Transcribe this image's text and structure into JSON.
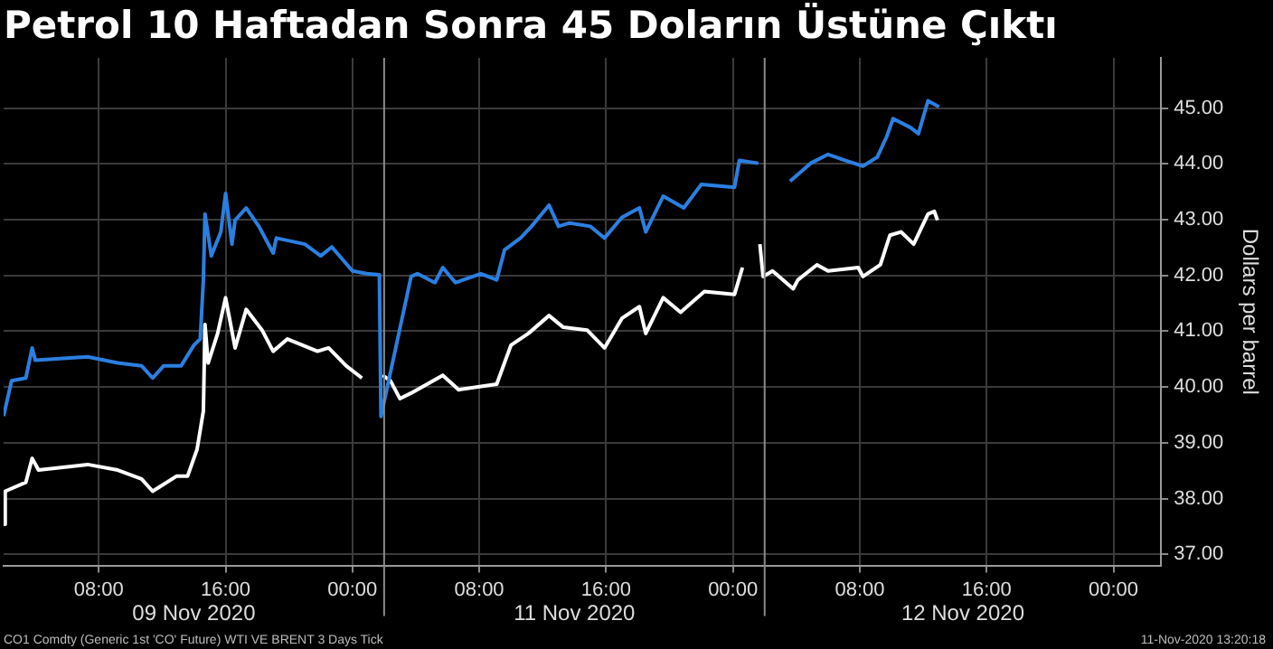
{
  "chart_data": {
    "type": "line",
    "title": "Petrol 10 Haftadan Sonra 45 Doların Üstüne Çıktı",
    "ylabel": "Dollars per barrel",
    "annotations": [
      "09 Nov 2020",
      "11 Nov 2020",
      "12 Nov 2020",
      "CO1 Comdty (Generic 1st 'CO' Future) WTI VE BRENT 3 Days  Tick",
      "11-Nov-2020 13:20:18"
    ],
    "xlim": [
      "2020-11-09T02:00",
      "2020-11-12T03:00"
    ],
    "xticks": [
      {
        "value": "2020-11-09T08:00",
        "label": "08:00"
      },
      {
        "value": "2020-11-09T16:00",
        "label": "16:00"
      },
      {
        "value": "2020-11-10T00:00",
        "label": "00:00"
      },
      {
        "value": "2020-11-10T08:00",
        "label": "08:00"
      },
      {
        "value": "2020-11-10T16:00",
        "label": "16:00"
      },
      {
        "value": "2020-11-11T00:00",
        "label": "00:00"
      },
      {
        "value": "2020-11-11T08:00",
        "label": "08:00"
      },
      {
        "value": "2020-11-11T16:00",
        "label": "16:00"
      },
      {
        "value": "2020-11-12T00:00",
        "label": "00:00"
      }
    ],
    "ylim": [
      36.8,
      45.9
    ],
    "yticks": [
      {
        "value": 37,
        "label": "37.00"
      },
      {
        "value": 38,
        "label": "38.00"
      },
      {
        "value": 39,
        "label": "39.00"
      },
      {
        "value": 40,
        "label": "40.00"
      },
      {
        "value": 41,
        "label": "41.00"
      },
      {
        "value": 42,
        "label": "42.00"
      },
      {
        "value": 43,
        "label": "43.00"
      },
      {
        "value": 44,
        "label": "44.00"
      },
      {
        "value": 45,
        "label": "45.00"
      }
    ],
    "grid": true,
    "legend": false,
    "ref_lines": [
      {
        "axis": "x",
        "value": "2020-11-10T02:00",
        "color": "#8a8a8a"
      },
      {
        "axis": "x",
        "value": "2020-11-11T02:00",
        "color": "#8a8a8a"
      }
    ],
    "series": [
      {
        "color": "#2b7fe0",
        "x": [
          "2020-11-09T02:00",
          "2020-11-09T02:30",
          "2020-11-09T03:24",
          "2020-11-09T03:48",
          "2020-11-09T04:00",
          "2020-11-09T07:18",
          "2020-11-09T09:12",
          "2020-11-09T10:42",
          "2020-11-09T11:24",
          "2020-11-09T12:06",
          "2020-11-09T13:12",
          "2020-11-09T14:00",
          "2020-11-09T14:24",
          "2020-11-09T14:36",
          "2020-11-09T14:42",
          "2020-11-09T15:06",
          "2020-11-09T15:42",
          "2020-11-09T16:00",
          "2020-11-09T16:24",
          "2020-11-09T16:36",
          "2020-11-09T17:18",
          "2020-11-09T18:06",
          "2020-11-09T19:00",
          "2020-11-09T19:12",
          "2020-11-09T21:00",
          "2020-11-09T22:00",
          "2020-11-09T22:42",
          "2020-11-10T00:00",
          "2020-11-10T00:54",
          "2020-11-10T01:42",
          "2020-11-10T01:48",
          "2020-11-10T03:42",
          "2020-11-10T04:06",
          "2020-11-10T05:12",
          "2020-11-10T05:42",
          "2020-11-10T06:30",
          "2020-11-10T08:06",
          "2020-11-10T09:06",
          "2020-11-10T09:36",
          "2020-11-10T10:36",
          "2020-11-10T11:18",
          "2020-11-10T12:24",
          "2020-11-10T13:00",
          "2020-11-10T13:42",
          "2020-11-10T15:00",
          "2020-11-10T15:54",
          "2020-11-10T17:00",
          "2020-11-10T18:06",
          "2020-11-10T18:30",
          "2020-11-10T19:36",
          "2020-11-10T20:54",
          "2020-11-10T22:00",
          "2020-11-11T00:06",
          "2020-11-11T00:24",
          "2020-11-11T01:36",
          "2020-11-11T02:36",
          "2020-11-11T03:36",
          "2020-11-11T04:54",
          "2020-11-11T06:00",
          "2020-11-11T07:06",
          "2020-11-11T08:12",
          "2020-11-11T09:06",
          "2020-11-11T09:42",
          "2020-11-11T10:06",
          "2020-11-11T11:12",
          "2020-11-11T11:42",
          "2020-11-11T12:18",
          "2020-11-11T13:00"
        ],
        "values": [
          39.48,
          40.11,
          40.16,
          40.7,
          40.48,
          40.54,
          40.43,
          40.38,
          40.16,
          40.38,
          40.38,
          40.75,
          40.86,
          41.92,
          43.1,
          42.35,
          42.78,
          43.47,
          42.56,
          42.99,
          43.21,
          42.88,
          42.4,
          42.67,
          42.56,
          42.35,
          42.51,
          42.08,
          42.03,
          42.01,
          39.47,
          41.98,
          42.03,
          41.87,
          42.14,
          41.87,
          42.03,
          41.92,
          42.46,
          42.67,
          42.88,
          43.26,
          42.88,
          42.94,
          42.88,
          42.67,
          43.04,
          43.21,
          42.78,
          43.42,
          43.21,
          43.63,
          43.58,
          44.06,
          44.01,
          null,
          43.69,
          44.01,
          44.17,
          44.06,
          43.96,
          44.12,
          44.49,
          44.81,
          44.65,
          44.54,
          45.13,
          45.02
        ]
      },
      {
        "color": "#ffffff",
        "x": [
          "2020-11-09T02:00",
          "2020-11-09T02:06",
          "2020-11-09T03:24",
          "2020-11-09T03:48",
          "2020-11-09T04:12",
          "2020-11-09T07:18",
          "2020-11-09T09:12",
          "2020-11-09T10:42",
          "2020-11-09T11:24",
          "2020-11-09T12:54",
          "2020-11-09T13:36",
          "2020-11-09T14:12",
          "2020-11-09T14:36",
          "2020-11-09T14:42",
          "2020-11-09T14:54",
          "2020-11-09T15:30",
          "2020-11-09T16:00",
          "2020-11-09T16:36",
          "2020-11-09T17:18",
          "2020-11-09T18:18",
          "2020-11-09T19:00",
          "2020-11-09T19:54",
          "2020-11-09T21:48",
          "2020-11-09T22:30",
          "2020-11-09T23:36",
          "2020-11-10T00:36",
          "2020-11-10T01:12",
          "2020-11-10T01:54",
          "2020-11-10T02:24",
          "2020-11-10T03:00",
          "2020-11-10T03:42",
          "2020-11-10T05:42",
          "2020-11-10T06:42",
          "2020-11-10T09:06",
          "2020-11-10T10:00",
          "2020-11-10T11:06",
          "2020-11-10T12:24",
          "2020-11-10T13:18",
          "2020-11-10T14:48",
          "2020-11-10T15:54",
          "2020-11-10T17:00",
          "2020-11-10T18:06",
          "2020-11-10T18:30",
          "2020-11-10T19:36",
          "2020-11-10T20:42",
          "2020-11-10T22:12",
          "2020-11-11T00:06",
          "2020-11-11T00:36",
          "2020-11-11T01:12",
          "2020-11-11T01:42",
          "2020-11-11T01:54",
          "2020-11-11T02:30",
          "2020-11-11T03:48",
          "2020-11-11T04:06",
          "2020-11-11T05:18",
          "2020-11-11T06:00",
          "2020-11-11T07:54",
          "2020-11-11T08:12",
          "2020-11-11T09:18",
          "2020-11-11T09:54",
          "2020-11-11T10:36",
          "2020-11-11T11:24",
          "2020-11-11T12:18",
          "2020-11-11T12:42",
          "2020-11-11T12:54"
        ],
        "values": [
          37.54,
          38.13,
          38.29,
          38.72,
          38.51,
          38.61,
          38.51,
          38.35,
          38.13,
          38.4,
          38.4,
          38.88,
          39.57,
          41.12,
          40.43,
          40.96,
          41.6,
          40.7,
          41.39,
          41.02,
          40.64,
          40.86,
          40.64,
          40.7,
          40.38,
          40.16,
          null,
          40.21,
          40.11,
          39.79,
          39.89,
          40.21,
          39.95,
          40.05,
          40.75,
          40.96,
          41.28,
          41.07,
          41.02,
          40.7,
          41.23,
          41.44,
          40.96,
          41.6,
          41.34,
          41.71,
          41.66,
          42.14,
          null,
          42.56,
          41.98,
          42.08,
          41.76,
          41.92,
          42.19,
          42.08,
          42.14,
          41.98,
          42.19,
          42.72,
          42.78,
          42.56,
          43.1,
          43.15,
          42.99
        ]
      }
    ]
  }
}
